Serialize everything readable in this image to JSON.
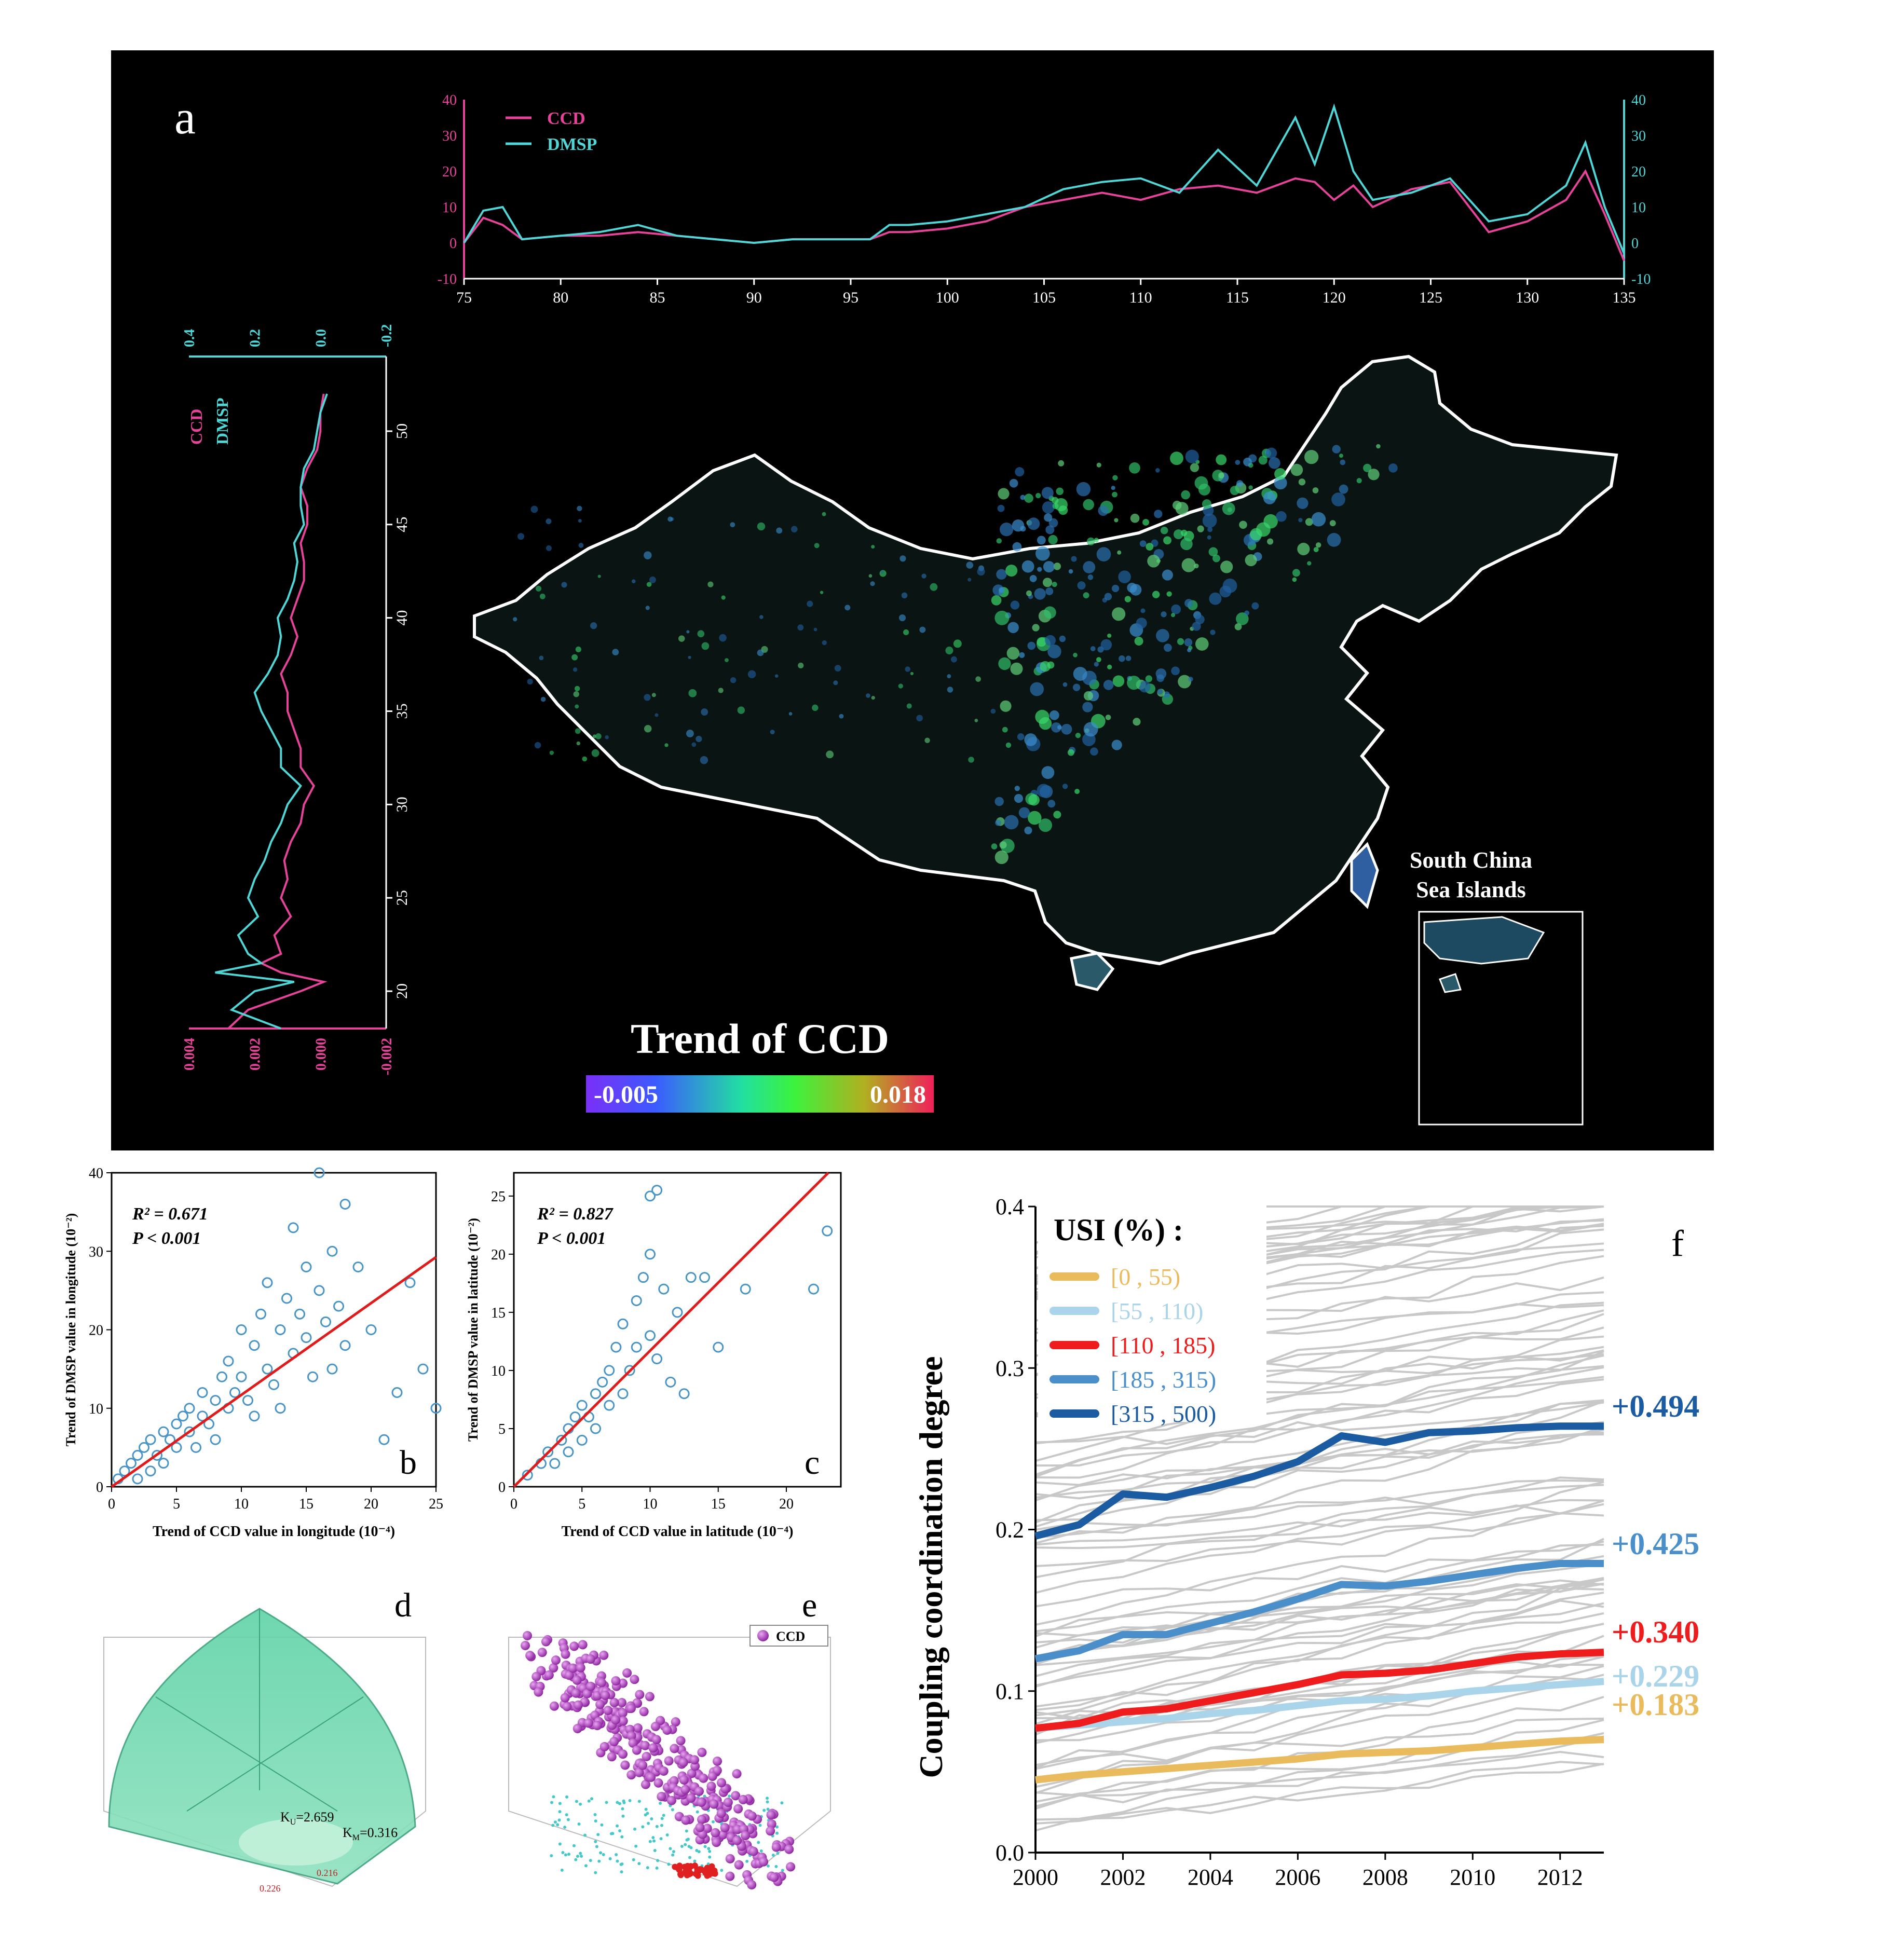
{
  "panel_a": {
    "letter": "a",
    "colorbar_title": "Trend of CCD",
    "colorbar_min": "-0.005",
    "colorbar_max": "0.018",
    "inset_label_1": "South China",
    "inset_label_2": "Sea Islands",
    "colors": {
      "ccd": "#e8439a",
      "dmsp": "#4fd6d6",
      "border": "#ffffff"
    }
  },
  "panel_b": {
    "letter": "b",
    "r2": "R² = 0.671",
    "p": "P < 0.001"
  },
  "panel_c": {
    "letter": "c",
    "r2": "R² = 0.827",
    "p": "P < 0.001"
  },
  "panel_d": {
    "letter": "d",
    "ku": "K",
    "ku_sub": "U",
    "ku_val": "=2.659",
    "km": "K",
    "km_sub": "M",
    "km_val": "=0.316",
    "v1": "0.216",
    "v2": "0.226"
  },
  "panel_e": {
    "letter": "e",
    "legend": "CCD"
  },
  "panel_f": {
    "letter": "f",
    "legend_title": "USI (%) :"
  },
  "chart_data": [
    {
      "type": "line",
      "id": "a_top",
      "x": [
        75,
        76,
        77,
        78,
        80,
        82,
        84,
        86,
        88,
        90,
        92,
        94,
        96,
        97,
        98,
        100,
        102,
        104,
        106,
        108,
        110,
        112,
        114,
        116,
        118,
        119,
        120,
        121,
        122,
        124,
        126,
        128,
        130,
        132,
        133,
        134,
        135
      ],
      "series": [
        {
          "name": "CCD",
          "values": [
            0,
            7,
            5,
            1,
            2,
            2,
            3,
            2,
            1,
            0,
            1,
            1,
            1,
            3,
            3,
            4,
            6,
            10,
            12,
            14,
            12,
            15,
            16,
            14,
            18,
            17,
            12,
            16,
            10,
            15,
            17,
            3,
            6,
            12,
            20,
            8,
            -5
          ]
        },
        {
          "name": "DMSP",
          "values": [
            0,
            9,
            10,
            1,
            2,
            3,
            5,
            2,
            1,
            0,
            1,
            1,
            1,
            5,
            5,
            6,
            8,
            10,
            15,
            17,
            18,
            14,
            26,
            16,
            35,
            22,
            38,
            20,
            12,
            14,
            18,
            6,
            8,
            16,
            28,
            10,
            -3
          ]
        }
      ],
      "xlim": [
        75,
        135
      ],
      "xticks": [
        75,
        80,
        85,
        90,
        95,
        100,
        105,
        110,
        115,
        120,
        125,
        130,
        135
      ],
      "ylim_left": [
        -10,
        40
      ],
      "ylim_right": [
        -10,
        40
      ],
      "yticks": [
        -10,
        0,
        10,
        20,
        30,
        40
      ]
    },
    {
      "type": "line",
      "id": "a_left",
      "orientation": "vertical",
      "lat": [
        18,
        19,
        20,
        20.5,
        21,
        21.5,
        22,
        23,
        24,
        25,
        26,
        27,
        28,
        29,
        30,
        31,
        32,
        33,
        34,
        35,
        36,
        37,
        38,
        39,
        40,
        41,
        42,
        43,
        44,
        45,
        46,
        47,
        48,
        49,
        50,
        51,
        52
      ],
      "series": [
        {
          "name": "CCD",
          "values": [
            0.0028,
            0.0022,
            0.0006,
            -0.0001,
            0.0012,
            0.0018,
            0.0012,
            0.0014,
            0.0009,
            0.0012,
            0.001,
            0.0011,
            0.0009,
            0.0006,
            0.0005,
            0.0002,
            0.0006,
            0.0006,
            0.0008,
            0.001,
            0.001,
            0.0012,
            0.0009,
            0.0007,
            0.0009,
            0.0007,
            0.0005,
            0.0005,
            0.0006,
            0.0004,
            0.0004,
            0.0006,
            0.0004,
            0.0001,
            0.0,
            0.0,
            -0.0001
          ]
        },
        {
          "name": "DMSP",
          "values": [
            0.12,
            0.27,
            0.2,
            0.08,
            0.32,
            0.18,
            0.22,
            0.25,
            0.19,
            0.22,
            0.2,
            0.17,
            0.15,
            0.12,
            0.1,
            0.06,
            0.12,
            0.12,
            0.15,
            0.18,
            0.2,
            0.16,
            0.13,
            0.12,
            0.13,
            0.1,
            0.08,
            0.07,
            0.08,
            0.05,
            0.06,
            0.06,
            0.05,
            0.02,
            0.01,
            0.0,
            -0.02
          ]
        }
      ],
      "ccd_axis": [
        0.004,
        0.002,
        0.0,
        -0.002
      ],
      "dmsp_axis": [
        0.4,
        0.2,
        0.0,
        -0.2
      ],
      "lat_ticks": [
        20,
        25,
        30,
        35,
        40,
        45,
        50
      ]
    },
    {
      "type": "scatter",
      "id": "b",
      "xlabel": "Trend of CCD value in longitude (10⁻⁴)",
      "ylabel": "Trend of DMSP value in longitude (10⁻²)",
      "xlim": [
        0,
        25
      ],
      "ylim": [
        0,
        40
      ],
      "xticks": [
        0,
        5,
        10,
        15,
        20,
        25
      ],
      "yticks": [
        0,
        10,
        20,
        30,
        40
      ],
      "fit": {
        "slope": 1.17,
        "intercept": 0
      },
      "points": [
        [
          0.5,
          1
        ],
        [
          1,
          2
        ],
        [
          1.5,
          3
        ],
        [
          2,
          4
        ],
        [
          2,
          1
        ],
        [
          2.5,
          5
        ],
        [
          3,
          6
        ],
        [
          3,
          2
        ],
        [
          3.5,
          4
        ],
        [
          4,
          7
        ],
        [
          4,
          3
        ],
        [
          4.5,
          6
        ],
        [
          5,
          8
        ],
        [
          5,
          5
        ],
        [
          5.5,
          9
        ],
        [
          6,
          7
        ],
        [
          6,
          10
        ],
        [
          6.5,
          5
        ],
        [
          7,
          9
        ],
        [
          7,
          12
        ],
        [
          7.5,
          8
        ],
        [
          8,
          11
        ],
        [
          8,
          6
        ],
        [
          8.5,
          14
        ],
        [
          9,
          10
        ],
        [
          9,
          16
        ],
        [
          9.5,
          12
        ],
        [
          10,
          14
        ],
        [
          10,
          20
        ],
        [
          10.5,
          11
        ],
        [
          11,
          18
        ],
        [
          11,
          9
        ],
        [
          11.5,
          22
        ],
        [
          12,
          15
        ],
        [
          12,
          26
        ],
        [
          12.5,
          13
        ],
        [
          13,
          20
        ],
        [
          13,
          10
        ],
        [
          13.5,
          24
        ],
        [
          14,
          17
        ],
        [
          14,
          33
        ],
        [
          14.5,
          22
        ],
        [
          15,
          19
        ],
        [
          15,
          28
        ],
        [
          15.5,
          14
        ],
        [
          16,
          25
        ],
        [
          16,
          40
        ],
        [
          16.5,
          21
        ],
        [
          17,
          15
        ],
        [
          17,
          30
        ],
        [
          17.5,
          23
        ],
        [
          18,
          36
        ],
        [
          18,
          18
        ],
        [
          19,
          28
        ],
        [
          20,
          20
        ],
        [
          21,
          6
        ],
        [
          22,
          12
        ],
        [
          23,
          26
        ],
        [
          24,
          15
        ],
        [
          25,
          10
        ]
      ]
    },
    {
      "type": "scatter",
      "id": "c",
      "xlabel": "Trend of CCD value in latitude (10⁻⁴)",
      "ylabel": "Trend of DMSP value in latitude (10⁻²)",
      "xlim": [
        0,
        24
      ],
      "ylim": [
        0,
        27
      ],
      "xticks": [
        0,
        5,
        10,
        15,
        20
      ],
      "yticks": [
        0,
        5,
        10,
        15,
        20,
        25
      ],
      "fit": {
        "slope": 1.17,
        "intercept": 0
      },
      "points": [
        [
          1,
          1
        ],
        [
          2,
          2
        ],
        [
          2.5,
          3
        ],
        [
          3,
          2
        ],
        [
          3.5,
          4
        ],
        [
          4,
          3
        ],
        [
          4,
          5
        ],
        [
          4.5,
          6
        ],
        [
          5,
          4
        ],
        [
          5,
          7
        ],
        [
          5.5,
          6
        ],
        [
          6,
          8
        ],
        [
          6,
          5
        ],
        [
          6.5,
          9
        ],
        [
          7,
          7
        ],
        [
          7,
          10
        ],
        [
          7.5,
          12
        ],
        [
          8,
          8
        ],
        [
          8,
          14
        ],
        [
          8.5,
          10
        ],
        [
          9,
          16
        ],
        [
          9,
          12
        ],
        [
          9.5,
          18
        ],
        [
          10,
          13
        ],
        [
          10,
          20
        ],
        [
          10.5,
          11
        ],
        [
          11,
          17
        ],
        [
          11.5,
          9
        ],
        [
          12,
          15
        ],
        [
          12.5,
          8
        ],
        [
          13,
          18
        ],
        [
          14,
          18
        ],
        [
          15,
          12
        ],
        [
          17,
          17
        ],
        [
          22,
          17
        ],
        [
          23,
          22
        ],
        [
          10,
          25
        ],
        [
          10.5,
          25.5
        ]
      ]
    },
    {
      "type": "line",
      "id": "f",
      "title": "",
      "ylabel": "Coupling coordination degree",
      "x": [
        2000,
        2001,
        2002,
        2003,
        2004,
        2005,
        2006,
        2007,
        2008,
        2009,
        2010,
        2011,
        2012,
        2013
      ],
      "xticks": [
        2000,
        2002,
        2004,
        2006,
        2008,
        2010,
        2012
      ],
      "ylim": [
        0.0,
        0.4
      ],
      "yticks": [
        0.0,
        0.1,
        0.2,
        0.3,
        0.4
      ],
      "series": [
        {
          "name": "[0 , 55)",
          "values": [
            0.045,
            0.048,
            0.05,
            0.052,
            0.054,
            0.056,
            0.058,
            0.061,
            0.062,
            0.063,
            0.065,
            0.067,
            0.069,
            0.07
          ],
          "color": "#e9bb5c",
          "change": "+0.183"
        },
        {
          "name": "[55 , 110)",
          "values": [
            0.077,
            0.079,
            0.081,
            0.083,
            0.086,
            0.088,
            0.091,
            0.094,
            0.095,
            0.097,
            0.1,
            0.102,
            0.104,
            0.106
          ],
          "color": "#a9d4ea",
          "change": "+0.229"
        },
        {
          "name": "[110 , 185)",
          "values": [
            0.077,
            0.08,
            0.087,
            0.089,
            0.094,
            0.099,
            0.104,
            0.11,
            0.111,
            0.113,
            0.117,
            0.121,
            0.123,
            0.124
          ],
          "color": "#ee1c1c",
          "change": "+0.340"
        },
        {
          "name": "[185 , 315)",
          "values": [
            0.12,
            0.125,
            0.135,
            0.135,
            0.142,
            0.149,
            0.157,
            0.166,
            0.165,
            0.168,
            0.172,
            0.176,
            0.179,
            0.179
          ],
          "color": "#4a8fca",
          "change": "+0.425"
        },
        {
          "name": "[315 , 500)",
          "values": [
            0.196,
            0.203,
            0.222,
            0.22,
            0.226,
            0.233,
            0.242,
            0.258,
            0.254,
            0.26,
            0.261,
            0.263,
            0.264,
            0.264
          ],
          "color": "#1a5ba1",
          "change": "+0.494"
        }
      ]
    }
  ]
}
